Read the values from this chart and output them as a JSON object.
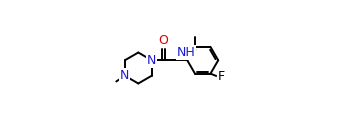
{
  "background_color": "#ffffff",
  "bond_color": "#000000",
  "figsize": [
    3.56,
    1.36
  ],
  "dpi": 100,
  "line_width": 1.4,
  "font_size_atom": 9,
  "font_size_small": 8,
  "N_color": "#1a1acd",
  "O_color": "#e00000",
  "F_color": "#000000",
  "C_color": "#000000",
  "xlim": [
    0.0,
    1.0
  ],
  "ylim": [
    0.0,
    1.0
  ]
}
